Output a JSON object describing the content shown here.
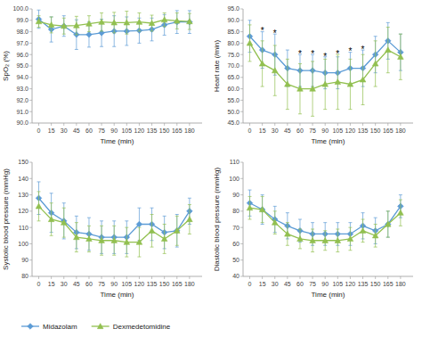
{
  "chart_data": [
    {
      "type": "line",
      "x_label": "Time (min)",
      "y_label": "SpO₂ (%)",
      "x": [
        0,
        15,
        30,
        45,
        60,
        75,
        90,
        105,
        120,
        135,
        150,
        165,
        180
      ],
      "xlim": [
        -8,
        195
      ],
      "xticks": [
        0,
        15,
        30,
        45,
        60,
        75,
        90,
        105,
        120,
        135,
        150,
        165,
        180
      ],
      "ylim": [
        90.0,
        100.0
      ],
      "yticks": [
        {
          "value": 90.0,
          "label": "90.0"
        },
        {
          "value": 91.0,
          "label": "91.0"
        },
        {
          "value": 92.0,
          "label": "92.0"
        },
        {
          "value": 93.0,
          "label": "93.0"
        },
        {
          "value": 94.0,
          "label": "94.0"
        },
        {
          "value": 95.0,
          "label": "95.0"
        },
        {
          "value": 96.0,
          "label": "96.0"
        },
        {
          "value": 97.0,
          "label": "97.0"
        },
        {
          "value": 98.0,
          "label": "98.0"
        },
        {
          "value": 99.0,
          "label": "99.0"
        },
        {
          "value": 100.0,
          "label": "100.0"
        }
      ],
      "grid": false,
      "series": [
        {
          "name": "Midazolam",
          "color": "#5b9bd5",
          "marker": "diamond",
          "values": [
            99.1,
            98.2,
            98.5,
            97.75,
            97.75,
            97.9,
            98.05,
            98.05,
            98.1,
            98.2,
            98.6,
            98.85,
            98.85
          ],
          "errors": [
            0.8,
            1.1,
            0.9,
            1.3,
            1.1,
            1.2,
            1.35,
            1.25,
            1.1,
            1.0,
            0.9,
            1.0,
            1.0
          ]
        },
        {
          "name": "Dexmedetomidine",
          "color": "#92c050",
          "marker": "triangle",
          "values": [
            98.9,
            98.6,
            98.5,
            98.55,
            98.7,
            98.85,
            98.8,
            98.8,
            98.85,
            98.75,
            99.05,
            98.95,
            98.9
          ],
          "errors": [
            0.5,
            0.7,
            0.7,
            0.8,
            0.7,
            0.8,
            0.9,
            1.0,
            0.8,
            0.7,
            0.6,
            0.7,
            0.7
          ]
        }
      ]
    },
    {
      "type": "line",
      "x_label": "Time (min)",
      "y_label": "Heart rate (/min)",
      "x": [
        0,
        15,
        30,
        45,
        60,
        75,
        90,
        105,
        120,
        135,
        150,
        165,
        180
      ],
      "xlim": [
        -8,
        195
      ],
      "xticks": [
        0,
        15,
        30,
        45,
        60,
        75,
        90,
        105,
        120,
        135,
        150,
        165,
        180
      ],
      "ylim": [
        45.0,
        95.0
      ],
      "yticks": [
        {
          "value": 45.0,
          "label": "45.0"
        },
        {
          "value": 50.0,
          "label": "50.0"
        },
        {
          "value": 55.0,
          "label": "55.0"
        },
        {
          "value": 60.0,
          "label": "60.0"
        },
        {
          "value": 65.0,
          "label": "65.0"
        },
        {
          "value": 70.0,
          "label": "70.0"
        },
        {
          "value": 75.0,
          "label": "75.0"
        },
        {
          "value": 80.0,
          "label": "80.0"
        },
        {
          "value": 85.0,
          "label": "85.0"
        },
        {
          "value": 90.0,
          "label": "90.0"
        },
        {
          "value": 95.0,
          "label": "95.0"
        }
      ],
      "grid": false,
      "series": [
        {
          "name": "Midazolam",
          "color": "#5b9bd5",
          "marker": "diamond",
          "values": [
            83,
            77,
            75,
            69,
            68,
            68,
            67,
            67,
            69,
            69,
            75,
            81,
            76
          ],
          "errors": [
            7,
            8,
            9,
            8,
            7,
            7,
            7,
            7,
            7,
            8,
            8,
            8,
            8
          ]
        },
        {
          "name": "Dexmedetomidine",
          "color": "#92c050",
          "marker": "triangle",
          "values": [
            80,
            71,
            68,
            62,
            60,
            60,
            62,
            63,
            62,
            64,
            71,
            77,
            74
          ],
          "errors": [
            8,
            10,
            11,
            11,
            11,
            12,
            11,
            12,
            11,
            11,
            10,
            10,
            10
          ]
        }
      ],
      "annotations": [
        {
          "text": "*",
          "x": 15
        },
        {
          "text": "*",
          "x": 30
        },
        {
          "text": "*",
          "x": 60
        },
        {
          "text": "*",
          "x": 75
        },
        {
          "text": "*",
          "x": 90
        },
        {
          "text": "*",
          "x": 105
        },
        {
          "text": "*",
          "x": 120
        },
        {
          "text": "*",
          "x": 135
        }
      ]
    },
    {
      "type": "line",
      "x_label": "Time (min)",
      "y_label": "Systolic blood pressure (mmHg)",
      "x": [
        0,
        15,
        30,
        45,
        60,
        75,
        90,
        105,
        120,
        135,
        150,
        165,
        180
      ],
      "xlim": [
        -8,
        195
      ],
      "xticks": [
        0,
        15,
        30,
        45,
        60,
        75,
        90,
        105,
        120,
        135,
        150,
        165,
        180
      ],
      "ylim": [
        80,
        150
      ],
      "yticks": [
        80,
        90,
        100,
        110,
        120,
        130,
        140,
        150
      ],
      "grid": false,
      "legend": "lower left",
      "series": [
        {
          "name": "Midazolam",
          "color": "#5b9bd5",
          "marker": "diamond",
          "values": [
            128,
            119,
            114,
            107,
            106,
            104,
            104,
            104,
            112,
            112,
            107,
            108,
            120
          ],
          "errors": [
            10,
            12,
            11,
            10,
            10,
            10,
            10,
            10,
            10,
            10,
            10,
            10,
            8
          ]
        },
        {
          "name": "Dexmedetomidine",
          "color": "#92c050",
          "marker": "triangle",
          "values": [
            123,
            115,
            113,
            104,
            103,
            102,
            102,
            101,
            101,
            108,
            103,
            108,
            115
          ],
          "errors": [
            9,
            10,
            9,
            9,
            8,
            9,
            9,
            9,
            9,
            10,
            9,
            9,
            9
          ]
        }
      ]
    },
    {
      "type": "line",
      "x_label": "Time (min)",
      "y_label": "Diastolic blood pressure (mmHg)",
      "x": [
        0,
        15,
        30,
        45,
        60,
        75,
        90,
        105,
        120,
        135,
        150,
        165,
        180
      ],
      "xlim": [
        -8,
        195
      ],
      "xticks": [
        0,
        15,
        30,
        45,
        60,
        75,
        90,
        105,
        120,
        135,
        150,
        165,
        180
      ],
      "ylim": [
        40,
        110
      ],
      "yticks": [
        40,
        50,
        60,
        70,
        80,
        90,
        100,
        110
      ],
      "grid": false,
      "series": [
        {
          "name": "Midazolam",
          "color": "#5b9bd5",
          "marker": "diamond",
          "values": [
            85,
            81,
            75,
            71,
            68,
            66,
            66,
            66,
            66,
            71,
            68,
            72,
            83
          ],
          "errors": [
            8,
            9,
            8,
            8,
            7,
            7,
            7,
            7,
            7,
            8,
            8,
            8,
            7
          ]
        },
        {
          "name": "Dexmedetomidine",
          "color": "#92c050",
          "marker": "triangle",
          "values": [
            82,
            81,
            73,
            66,
            63,
            62,
            62,
            62,
            63,
            68,
            65,
            72,
            79
          ],
          "errors": [
            7,
            8,
            7,
            7,
            6,
            7,
            6,
            7,
            7,
            7,
            7,
            8,
            8
          ]
        }
      ]
    }
  ]
}
